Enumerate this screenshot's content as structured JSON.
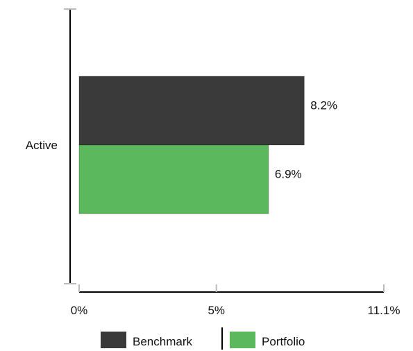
{
  "chart_data": {
    "type": "bar",
    "orientation": "horizontal",
    "categories": [
      "Active"
    ],
    "series": [
      {
        "name": "Benchmark",
        "values": [
          8.2
        ],
        "labels": [
          "8.2%"
        ],
        "color": "#3a3a3a"
      },
      {
        "name": "Portfolio",
        "values": [
          6.9
        ],
        "labels": [
          "6.9%"
        ],
        "color": "#5cb85c"
      }
    ],
    "xlim": [
      0,
      11.1
    ],
    "xticks": [
      {
        "value": 0,
        "label": "0%"
      },
      {
        "value": 5,
        "label": "5%"
      },
      {
        "value": 11.1,
        "label": "11.1%"
      }
    ],
    "legend_position": "bottom",
    "grid": false
  }
}
